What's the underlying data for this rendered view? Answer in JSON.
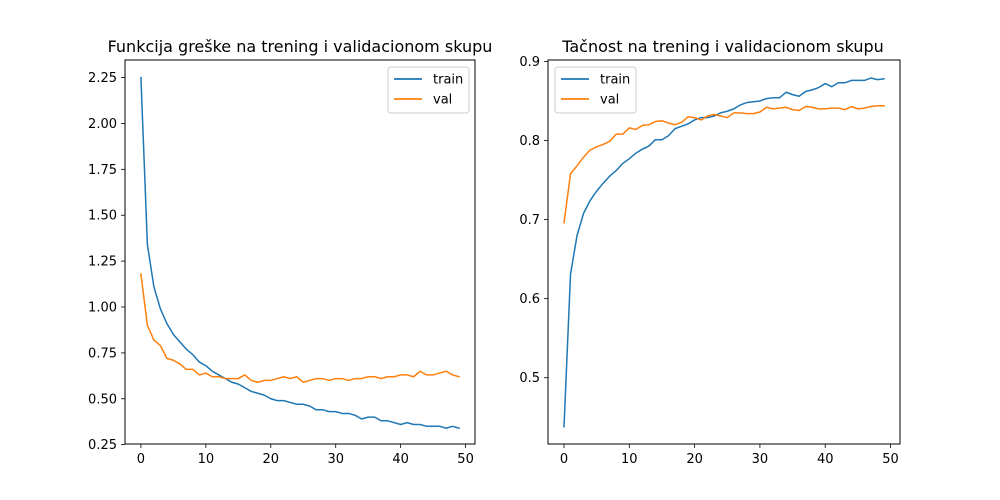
{
  "colors": {
    "train": "#1f77b4",
    "val": "#ff7f0e"
  },
  "chart_data": [
    {
      "type": "line",
      "title": "Funkcija greške na trening i validacionom skupu",
      "xlabel": "",
      "ylabel": "",
      "xlim": [
        -2.45,
        51.45
      ],
      "ylim": [
        0.2536,
        2.3459
      ],
      "xticks": [
        0,
        10,
        20,
        30,
        40,
        50
      ],
      "yticks": [
        0.25,
        0.5,
        0.75,
        1.0,
        1.25,
        1.5,
        1.75,
        2.0,
        2.25
      ],
      "ytick_labels": [
        "0.25",
        "0.50",
        "0.75",
        "1.00",
        "1.25",
        "1.50",
        "1.75",
        "2.00",
        "2.25"
      ],
      "grid": false,
      "legend_position": "upper right",
      "series": [
        {
          "name": "train",
          "values": [
            2.25,
            1.34,
            1.11,
            0.99,
            0.91,
            0.85,
            0.81,
            0.77,
            0.74,
            0.7,
            0.68,
            0.65,
            0.63,
            0.61,
            0.59,
            0.58,
            0.56,
            0.54,
            0.53,
            0.52,
            0.5,
            0.49,
            0.49,
            0.48,
            0.47,
            0.47,
            0.46,
            0.44,
            0.44,
            0.43,
            0.43,
            0.42,
            0.42,
            0.41,
            0.39,
            0.4,
            0.4,
            0.38,
            0.38,
            0.37,
            0.36,
            0.37,
            0.36,
            0.36,
            0.35,
            0.35,
            0.35,
            0.34,
            0.35,
            0.34
          ]
        },
        {
          "name": "val",
          "values": [
            1.18,
            0.9,
            0.82,
            0.79,
            0.72,
            0.71,
            0.69,
            0.66,
            0.66,
            0.63,
            0.64,
            0.62,
            0.62,
            0.61,
            0.61,
            0.61,
            0.63,
            0.6,
            0.59,
            0.6,
            0.6,
            0.61,
            0.62,
            0.61,
            0.62,
            0.59,
            0.6,
            0.61,
            0.61,
            0.6,
            0.61,
            0.61,
            0.6,
            0.61,
            0.61,
            0.62,
            0.62,
            0.61,
            0.62,
            0.62,
            0.63,
            0.63,
            0.62,
            0.65,
            0.63,
            0.63,
            0.64,
            0.65,
            0.63,
            0.62
          ]
        }
      ]
    },
    {
      "type": "line",
      "title": "Tačnost na trening i validacionom skupu",
      "xlabel": "",
      "ylabel": "",
      "xlim": [
        -2.45,
        51.45
      ],
      "ylim": [
        0.4162,
        0.9018
      ],
      "xticks": [
        0,
        10,
        20,
        30,
        40,
        50
      ],
      "yticks": [
        0.5,
        0.6,
        0.7,
        0.8,
        0.9
      ],
      "ytick_labels": [
        "0.5",
        "0.6",
        "0.7",
        "0.8",
        "0.9"
      ],
      "grid": false,
      "legend_position": "upper left",
      "series": [
        {
          "name": "train",
          "values": [
            0.438,
            0.631,
            0.68,
            0.708,
            0.724,
            0.736,
            0.746,
            0.755,
            0.762,
            0.771,
            0.777,
            0.784,
            0.789,
            0.793,
            0.801,
            0.801,
            0.806,
            0.815,
            0.818,
            0.821,
            0.826,
            0.829,
            0.829,
            0.831,
            0.835,
            0.837,
            0.84,
            0.845,
            0.848,
            0.849,
            0.85,
            0.853,
            0.854,
            0.854,
            0.861,
            0.858,
            0.856,
            0.862,
            0.864,
            0.867,
            0.872,
            0.868,
            0.873,
            0.873,
            0.876,
            0.876,
            0.876,
            0.879,
            0.877,
            0.878
          ]
        },
        {
          "name": "val",
          "values": [
            0.696,
            0.758,
            0.768,
            0.779,
            0.788,
            0.792,
            0.795,
            0.799,
            0.808,
            0.808,
            0.816,
            0.814,
            0.819,
            0.82,
            0.824,
            0.825,
            0.822,
            0.82,
            0.823,
            0.83,
            0.829,
            0.826,
            0.831,
            0.833,
            0.831,
            0.829,
            0.835,
            0.835,
            0.834,
            0.834,
            0.836,
            0.842,
            0.84,
            0.841,
            0.842,
            0.839,
            0.838,
            0.843,
            0.842,
            0.84,
            0.84,
            0.841,
            0.841,
            0.839,
            0.843,
            0.84,
            0.841,
            0.843,
            0.844,
            0.844
          ]
        }
      ]
    }
  ]
}
